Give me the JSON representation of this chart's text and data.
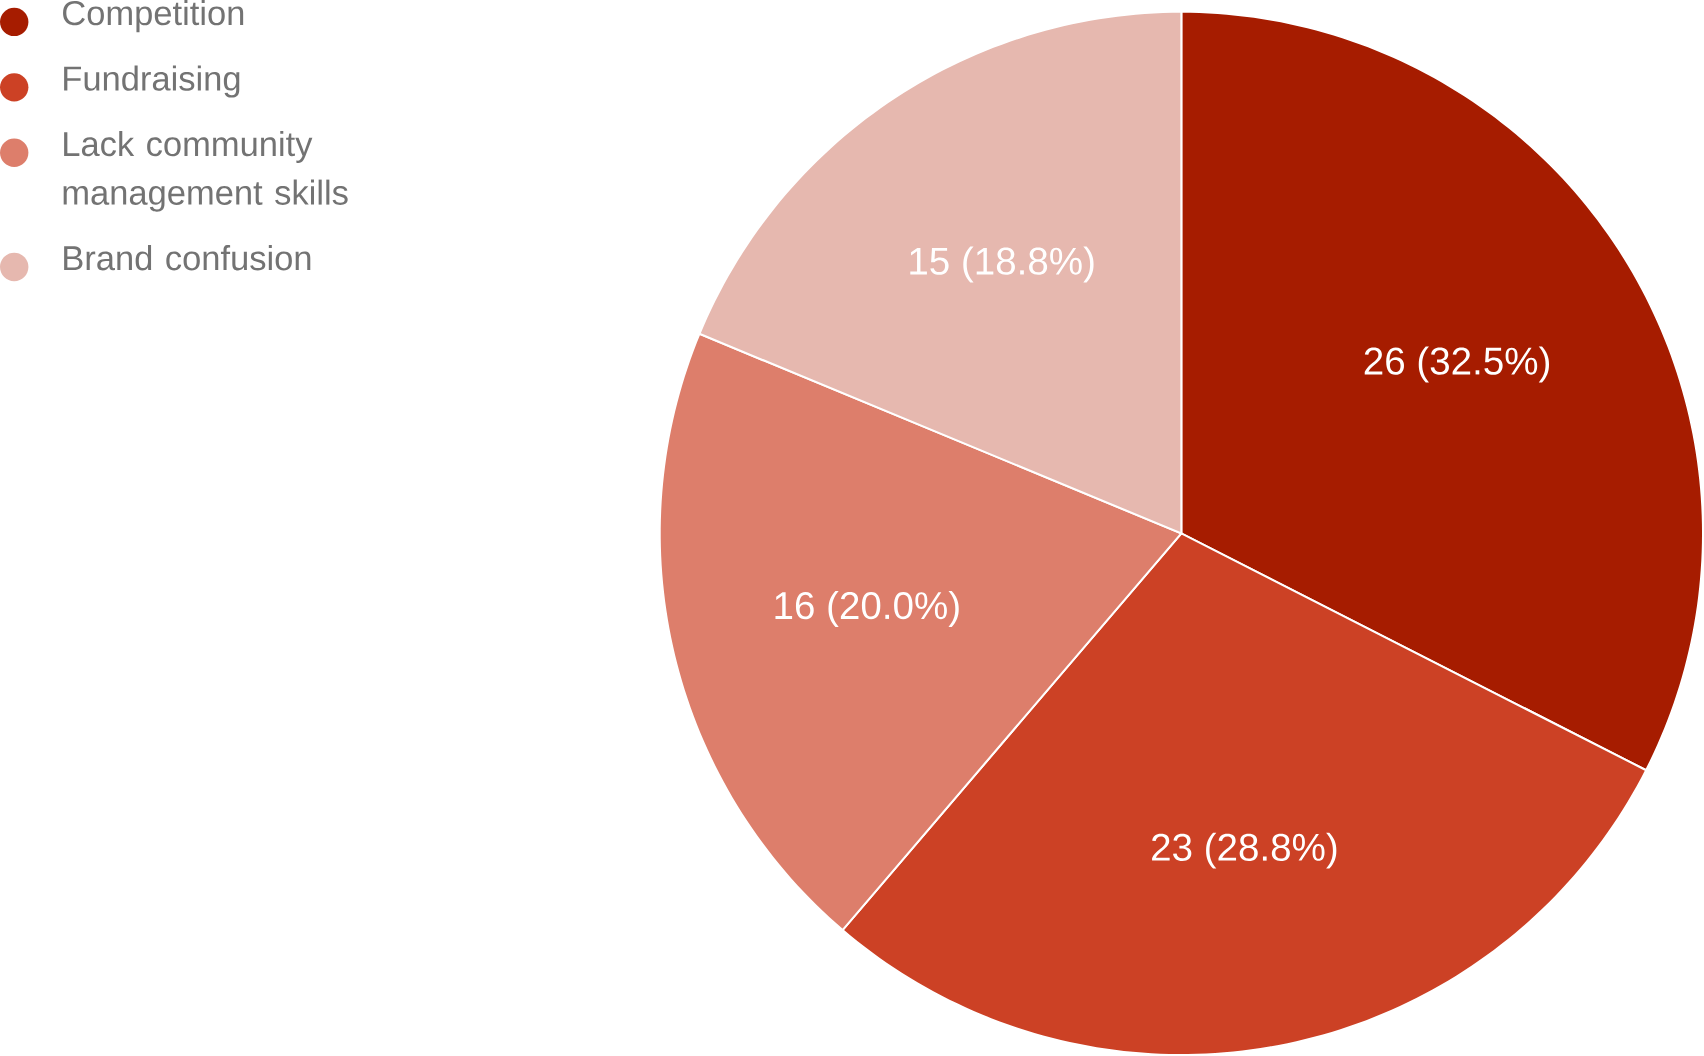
{
  "chart_data": {
    "type": "pie",
    "categories": [
      "Competition",
      "Fundraising",
      "Lack community management skills",
      "Brand confusion"
    ],
    "values": [
      26,
      23,
      16,
      15
    ],
    "colors": [
      "#a61c00",
      "#cc4125",
      "#dd7e6b",
      "#e6b8af"
    ],
    "value_labels": [
      "26 (32.5%)",
      "23 (28.8%)",
      "16 (20.0%)",
      "15 (18.8%)"
    ],
    "legend": "top left"
  }
}
